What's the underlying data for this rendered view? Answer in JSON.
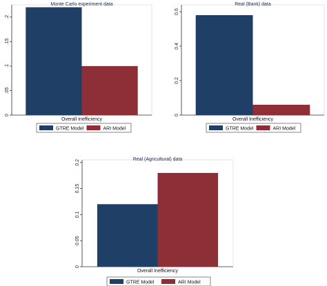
{
  "chart_data": [
    {
      "type": "bar",
      "title": "Monte Carlo experiment data",
      "xlabel": "Overall Inefficiency",
      "ylabel": "",
      "ylim": [
        0,
        0.225
      ],
      "yticks": [
        "0",
        ".05",
        ".1",
        ".15",
        ".2"
      ],
      "ytick_values": [
        0,
        0.05,
        0.1,
        0.15,
        0.2
      ],
      "grid": false,
      "legend_position": "bottom",
      "series": [
        {
          "name": "GTRE Model",
          "values": [
            0.22
          ],
          "color": "#1f3f66"
        },
        {
          "name": "ARI Model",
          "values": [
            0.1
          ],
          "color": "#8e2f38"
        }
      ]
    },
    {
      "type": "bar",
      "title": "Real (Bank) data",
      "xlabel": "Overall Inefficiency",
      "ylabel": "",
      "ylim": [
        0,
        0.64
      ],
      "yticks": [
        "0",
        "0.2",
        "0.4",
        "0.6"
      ],
      "ytick_values": [
        0,
        0.2,
        0.4,
        0.6
      ],
      "grid": false,
      "legend_position": "bottom",
      "series": [
        {
          "name": "GTRE Model",
          "values": [
            0.58
          ],
          "color": "#1f3f66"
        },
        {
          "name": "ARI Model",
          "values": [
            0.06
          ],
          "color": "#8e2f38"
        }
      ]
    },
    {
      "type": "bar",
      "title": "Real (Agricultural) data",
      "xlabel": "Overall Inefficiency",
      "ylabel": "",
      "ylim": [
        0,
        0.205
      ],
      "yticks": [
        "0",
        "0.05",
        "0.1",
        "0.15",
        "0.2"
      ],
      "ytick_values": [
        0,
        0.05,
        0.1,
        0.15,
        0.2
      ],
      "grid": false,
      "legend_position": "bottom",
      "series": [
        {
          "name": "GTRE Model",
          "values": [
            0.12
          ],
          "color": "#1f3f66"
        },
        {
          "name": "ARI Model",
          "values": [
            0.18
          ],
          "color": "#8e2f38"
        }
      ]
    }
  ]
}
